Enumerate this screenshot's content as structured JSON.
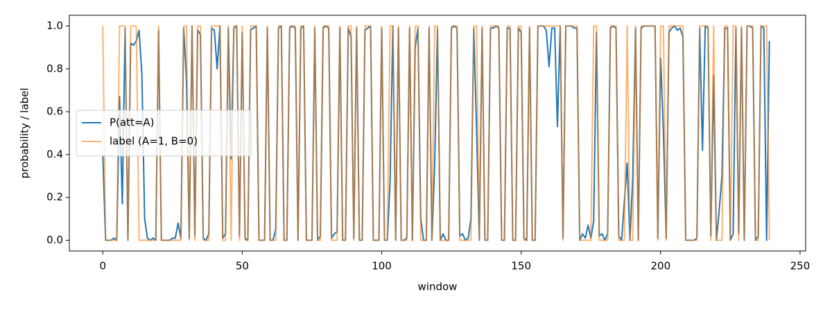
{
  "chart_data": {
    "type": "line",
    "xlabel": "window",
    "ylabel": "probability / label",
    "xlim": [
      -12,
      252
    ],
    "ylim": [
      -0.05,
      1.05
    ],
    "xticks": [
      0,
      50,
      100,
      150,
      200,
      250
    ],
    "yticks": [
      {
        "value": 0,
        "label": "0.0"
      },
      0.2,
      0.4,
      0.6,
      0.8,
      {
        "value": 1,
        "label": "1.0"
      }
    ],
    "grid": false,
    "legend": "center left",
    "x": [
      0,
      1,
      2,
      3,
      4,
      5,
      6,
      7,
      8,
      9,
      10,
      11,
      12,
      13,
      14,
      15,
      16,
      17,
      18,
      19,
      20,
      21,
      22,
      23,
      24,
      25,
      26,
      27,
      28,
      29,
      30,
      31,
      32,
      33,
      34,
      35,
      36,
      37,
      38,
      39,
      40,
      41,
      42,
      43,
      44,
      45,
      46,
      47,
      48,
      49,
      50,
      51,
      52,
      53,
      54,
      55,
      56,
      57,
      58,
      59,
      60,
      61,
      62,
      63,
      64,
      65,
      66,
      67,
      68,
      69,
      70,
      71,
      72,
      73,
      74,
      75,
      76,
      77,
      78,
      79,
      80,
      81,
      82,
      83,
      84,
      85,
      86,
      87,
      88,
      89,
      90,
      91,
      92,
      93,
      94,
      95,
      96,
      97,
      98,
      99,
      100,
      101,
      102,
      103,
      104,
      105,
      106,
      107,
      108,
      109,
      110,
      111,
      112,
      113,
      114,
      115,
      116,
      117,
      118,
      119,
      120,
      121,
      122,
      123,
      124,
      125,
      126,
      127,
      128,
      129,
      130,
      131,
      132,
      133,
      134,
      135,
      136,
      137,
      138,
      139,
      140,
      141,
      142,
      143,
      144,
      145,
      146,
      147,
      148,
      149,
      150,
      151,
      152,
      153,
      154,
      155,
      156,
      157,
      158,
      159,
      160,
      161,
      162,
      163,
      164,
      165,
      166,
      167,
      168,
      169,
      170,
      171,
      172,
      173,
      174,
      175,
      176,
      177,
      178,
      179,
      180,
      181,
      182,
      183,
      184,
      185,
      186,
      187,
      188,
      189,
      190,
      191,
      192,
      193,
      194,
      195,
      196,
      197,
      198,
      199,
      200,
      201,
      202,
      203,
      204,
      205,
      206,
      207,
      208,
      209,
      210,
      211,
      212,
      213,
      214,
      215,
      216,
      217,
      218,
      219,
      220,
      221,
      222,
      223,
      224,
      225,
      226,
      227,
      228,
      229,
      230,
      231,
      232,
      233,
      234,
      235,
      236,
      237,
      238,
      239
    ],
    "series": [
      {
        "name": "P(att=A)",
        "color": "#1f77b4",
        "alpha": 1,
        "values": [
          0.4,
          0.0,
          0.0,
          0.0,
          0.01,
          0.0,
          0.67,
          0.17,
          0.99,
          0.0,
          0.92,
          0.91,
          0.93,
          0.98,
          0.78,
          0.1,
          0.01,
          0.0,
          0.01,
          0.0,
          0.98,
          0.0,
          0.0,
          0.0,
          0.0,
          0.01,
          0.01,
          0.08,
          0.01,
          0.99,
          0.75,
          0.01,
          1.0,
          0.02,
          0.98,
          0.96,
          0.01,
          0.0,
          0.03,
          0.99,
          0.98,
          0.8,
          1.0,
          0.01,
          0.03,
          0.99,
          0.38,
          0.99,
          1.0,
          0.02,
          0.97,
          0.01,
          0.0,
          0.98,
          0.99,
          1.0,
          0.0,
          0.0,
          0.0,
          0.99,
          0.0,
          0.0,
          0.05,
          0.99,
          1.0,
          0.0,
          0.0,
          0.99,
          1.0,
          0.99,
          0.0,
          0.99,
          1.0,
          0.0,
          0.0,
          0.0,
          0.99,
          0.0,
          0.02,
          0.99,
          1.0,
          0.99,
          0.01,
          0.03,
          0.04,
          0.99,
          0.0,
          0.0,
          0.99,
          0.95,
          0.01,
          0.99,
          0.0,
          0.0,
          0.98,
          0.99,
          1.0,
          0.0,
          0.0,
          0.0,
          0.99,
          0.0,
          0.0,
          0.27,
          1.0,
          0.0,
          0.99,
          0.0,
          0.0,
          0.01,
          0.99,
          0.0,
          0.9,
          0.99,
          0.1,
          0.0,
          0.0,
          0.99,
          0.0,
          0.36,
          0.99,
          0.0,
          0.03,
          0.0,
          0.0,
          0.99,
          1.0,
          0.99,
          0.02,
          0.03,
          0.0,
          0.01,
          0.1,
          0.99,
          0.52,
          0.0,
          0.99,
          0.0,
          0.0,
          0.99,
          0.99,
          1.0,
          0.99,
          0.0,
          0.0,
          0.99,
          0.99,
          0.0,
          0.0,
          0.99,
          0.97,
          0.01,
          0.0,
          0.99,
          0.0,
          0.0,
          1.0,
          1.0,
          1.0,
          0.98,
          0.81,
          0.99,
          0.99,
          0.53,
          1.0,
          0.01,
          1.0,
          1.0,
          1.0,
          0.99,
          0.99,
          0.0,
          0.03,
          0.01,
          0.07,
          0.01,
          0.09,
          0.97,
          0.02,
          0.03,
          0.0,
          0.03,
          0.99,
          1.0,
          0.99,
          0.02,
          0.0,
          0.18,
          0.36,
          0.0,
          0.29,
          0.99,
          0.0,
          0.99,
          1.0,
          1.0,
          1.0,
          1.0,
          1.0,
          0.01,
          0.85,
          0.51,
          0.01,
          0.97,
          0.99,
          1.0,
          0.98,
          0.99,
          0.95,
          0.0,
          0.0,
          0.0,
          0.0,
          0.01,
          0.99,
          0.42,
          1.0,
          0.99,
          0.02,
          0.77,
          0.0,
          0.14,
          0.3,
          0.99,
          0.99,
          0.0,
          0.03,
          0.99,
          0.03,
          0.99,
          0.0,
          1.0,
          1.0,
          0.99,
          0.0,
          0.02,
          1.0,
          0.99,
          0.0,
          0.93
        ]
      },
      {
        "name": "label (A=1, B=0)",
        "color": "#ff7f0e",
        "alpha": 0.6,
        "values": [
          1,
          0,
          0,
          0,
          0,
          0,
          1,
          1,
          1,
          0,
          1,
          1,
          1,
          0,
          0,
          0,
          0,
          0,
          0,
          0,
          1,
          0,
          0,
          0,
          0,
          0,
          0,
          0,
          0,
          1,
          1,
          0,
          1,
          0,
          1,
          1,
          0,
          0,
          0,
          1,
          1,
          1,
          1,
          0,
          0,
          1,
          0,
          1,
          1,
          0,
          1,
          0,
          0,
          1,
          1,
          1,
          0,
          0,
          0,
          1,
          0,
          0,
          0,
          1,
          1,
          0,
          0,
          1,
          1,
          1,
          0,
          1,
          1,
          0,
          0,
          0,
          1,
          0,
          0,
          1,
          1,
          1,
          0,
          0,
          0,
          1,
          0,
          0,
          1,
          1,
          0,
          1,
          0,
          0,
          1,
          1,
          1,
          0,
          0,
          0,
          1,
          0,
          0,
          1,
          1,
          0,
          1,
          0,
          0,
          0,
          1,
          0,
          1,
          1,
          0,
          0,
          0,
          1,
          0,
          1,
          1,
          0,
          0,
          0,
          0,
          1,
          1,
          1,
          0,
          0,
          0,
          0,
          0,
          1,
          1,
          0,
          1,
          0,
          0,
          1,
          1,
          1,
          1,
          0,
          0,
          1,
          1,
          0,
          0,
          1,
          1,
          0,
          0,
          1,
          0,
          0,
          1,
          1,
          1,
          1,
          1,
          1,
          1,
          1,
          1,
          0,
          1,
          1,
          1,
          1,
          1,
          0,
          0,
          0,
          0,
          0,
          1,
          1,
          0,
          0,
          0,
          0,
          1,
          1,
          1,
          0,
          0,
          0,
          1,
          0,
          0,
          1,
          0,
          1,
          1,
          1,
          1,
          1,
          1,
          0,
          1,
          1,
          0,
          1,
          1,
          1,
          1,
          1,
          1,
          0,
          0,
          0,
          0,
          0,
          1,
          1,
          1,
          1,
          0,
          1,
          0,
          0,
          0,
          1,
          1,
          0,
          1,
          1,
          0,
          1,
          0,
          1,
          1,
          1,
          0,
          0,
          1,
          1,
          1,
          0
        ]
      }
    ]
  }
}
